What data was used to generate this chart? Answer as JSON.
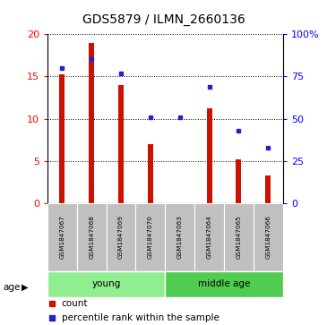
{
  "title": "GDS5879 / ILMN_2660136",
  "samples": [
    "GSM1847067",
    "GSM1847068",
    "GSM1847069",
    "GSM1847070",
    "GSM1847063",
    "GSM1847064",
    "GSM1847065",
    "GSM1847066"
  ],
  "count_values": [
    15.3,
    19.0,
    14.0,
    7.0,
    0.05,
    11.2,
    5.2,
    3.3
  ],
  "percentile_values": [
    8.0,
    8.5,
    7.7,
    5.1,
    5.1,
    6.9,
    4.3,
    3.3
  ],
  "ylim_left": [
    0,
    20
  ],
  "ylim_right": [
    0,
    10
  ],
  "yticks_left": [
    0,
    5,
    10,
    15,
    20
  ],
  "yticks_right": [
    0,
    2.5,
    5.0,
    7.5,
    10.0
  ],
  "ytick_labels_left": [
    "0",
    "5",
    "10",
    "15",
    "20"
  ],
  "ytick_labels_right": [
    "0",
    "25",
    "50",
    "75",
    "100%"
  ],
  "bar_color": "#CC1100",
  "marker_color": "#2222CC",
  "bar_width": 0.18,
  "age_label": "age",
  "legend_count": "count",
  "legend_percentile": "percentile rank within the sample",
  "bg_color": "#ffffff",
  "tick_bg": "#C0C0C0",
  "group_color": "#90EE90",
  "group_color_dark": "#50CC50",
  "grid_linestyle": "dotted",
  "title_fontsize": 10,
  "label_fontsize": 6.5,
  "group_defs": [
    [
      0,
      4,
      "young"
    ],
    [
      4,
      8,
      "middle age"
    ]
  ]
}
